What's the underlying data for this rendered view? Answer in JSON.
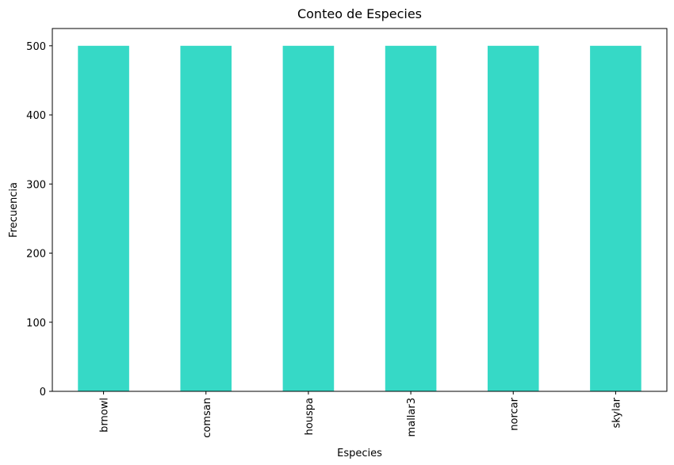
{
  "chart_data": {
    "type": "bar",
    "title": "Conteo de Especies",
    "xlabel": "Especies",
    "ylabel": "Frecuencia",
    "categories": [
      "brnowl",
      "comsan",
      "houspa",
      "mallar3",
      "norcar",
      "skylar"
    ],
    "values": [
      500,
      500,
      500,
      500,
      500,
      500
    ],
    "ylim": [
      0,
      525
    ],
    "yticks": [
      0,
      100,
      200,
      300,
      400,
      500
    ],
    "bar_color": "#36d9c6",
    "grid": false,
    "legend": "none"
  }
}
